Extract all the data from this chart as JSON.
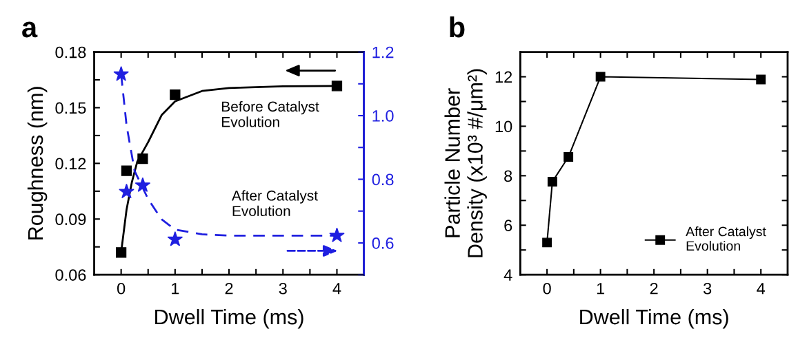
{
  "chart_data": [
    {
      "type": "scatter",
      "title": "a",
      "xlabel": "Dwell Time (ms)",
      "ylabel": "Roughness (nm)",
      "xlim": [
        -0.5,
        4.5
      ],
      "xticks": [
        0,
        {
          "value": 0.5,
          "label": null
        },
        1,
        {
          "value": 1.5,
          "label": null
        },
        2,
        {
          "value": 2.5,
          "label": null
        },
        3,
        {
          "value": 3.5,
          "label": null
        },
        4
      ],
      "ylim": [
        0.06,
        0.18
      ],
      "yticks": [
        {
          "value": 0.06,
          "label": "0.06"
        },
        {
          "value": 0.075,
          "label": null
        },
        {
          "value": 0.09,
          "label": "0.09"
        },
        {
          "value": 0.105,
          "label": null
        },
        {
          "value": 0.12,
          "label": "0.12"
        },
        {
          "value": 0.135,
          "label": null
        },
        {
          "value": 0.15,
          "label": "0.15"
        },
        {
          "value": 0.165,
          "label": null
        },
        {
          "value": 0.18,
          "label": "0.18"
        }
      ],
      "y2lim": [
        0.5,
        1.2
      ],
      "y2ticks": [
        {
          "value": 0.5,
          "label": null
        },
        {
          "value": 0.6,
          "label": "0.6"
        },
        {
          "value": 0.7,
          "label": null
        },
        {
          "value": 0.8,
          "label": "0.8"
        },
        {
          "value": 0.9,
          "label": null
        },
        {
          "value": 1.0,
          "label": "1.0"
        },
        {
          "value": 1.1,
          "label": null
        },
        {
          "value": 1.2,
          "label": "1.2"
        }
      ],
      "annotations": [
        "Before Catalyst\nEvolution",
        "After Catalyst\nEvolution"
      ],
      "series": [
        {
          "type": "scatter",
          "marker": "square",
          "color": "#000000",
          "x": [
            0,
            0.1,
            0.4,
            1,
            4
          ],
          "values": [
            0.072,
            0.116,
            0.1225,
            0.157,
            0.1617
          ]
        },
        {
          "type": "line",
          "line_style": "solid",
          "color": "#000000",
          "x": [
            0,
            0.1,
            0.2,
            0.3,
            0.5,
            0.75,
            1,
            1.5,
            2,
            3,
            4
          ],
          "values": [
            0.072,
            0.095,
            0.11,
            0.121,
            0.1314,
            0.146,
            0.1534,
            0.159,
            0.1606,
            0.1615,
            0.1617
          ]
        },
        {
          "type": "scatter",
          "axis": "y2",
          "marker": "star",
          "color": "#1f1fe0",
          "x": [
            0,
            0.1,
            0.4,
            1,
            4
          ],
          "values": [
            1.13,
            0.761,
            0.781,
            0.611,
            0.623
          ]
        },
        {
          "type": "line",
          "axis": "y2",
          "line_style": "dashed",
          "color": "#1f1fe0",
          "x": [
            0,
            0.1,
            0.25,
            0.5,
            0.75,
            1,
            1.5,
            2,
            3,
            4
          ],
          "values": [
            1.13,
            0.97,
            0.826,
            0.738,
            0.674,
            0.642,
            0.627,
            0.623,
            0.623,
            0.623
          ]
        }
      ]
    },
    {
      "type": "line",
      "title": "b",
      "xlabel": "Dwell Time (ms)",
      "ylabel": "Particle Number\nDensity (x10³ #/μm²)",
      "legend": "bottom right",
      "marker": "square",
      "xlim": [
        -0.5,
        4.5
      ],
      "xticks": [
        0,
        {
          "value": 0.5,
          "label": null
        },
        1,
        {
          "value": 1.5,
          "label": null
        },
        2,
        {
          "value": 2.5,
          "label": null
        },
        3,
        {
          "value": 3.5,
          "label": null
        },
        4
      ],
      "ylim": [
        4,
        13
      ],
      "yticks": [
        4,
        {
          "value": 5,
          "label": null
        },
        6,
        {
          "value": 7,
          "label": null
        },
        8,
        {
          "value": 9,
          "label": null
        },
        10,
        {
          "value": 11,
          "label": null
        },
        12
      ],
      "series": [
        {
          "name": "After Catalyst\nEvolution",
          "color": "#000000",
          "x": [
            0,
            0.1,
            0.4,
            1,
            4
          ],
          "values": [
            5.3,
            7.76,
            8.76,
            12.0,
            11.89
          ]
        }
      ]
    }
  ]
}
